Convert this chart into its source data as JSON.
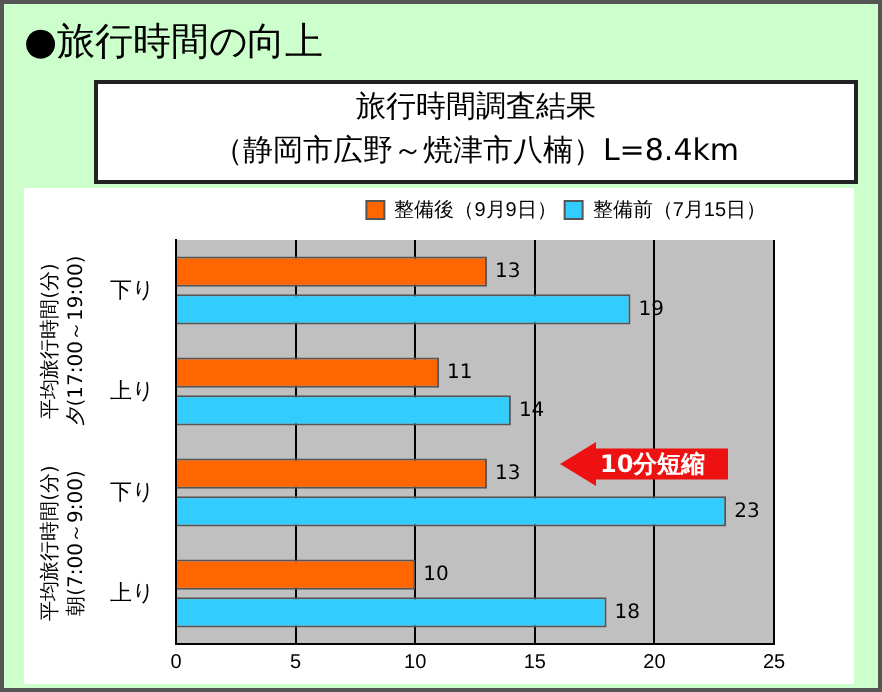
{
  "chart_data": {
    "type": "bar",
    "orientation": "horizontal",
    "title": "旅行時間調査結果",
    "subtitle": "（静岡市広野～焼津市八楠）L=8.4km",
    "categories": [
      "下り",
      "上り",
      "下り",
      "上り"
    ],
    "series": [
      {
        "name": "整備後（9月9日）",
        "color": "#ff6600",
        "values": [
          13,
          11,
          13,
          10
        ]
      },
      {
        "name": "整備前（7月15日）",
        "color": "#33ccff",
        "values": [
          19,
          14,
          23,
          18
        ]
      }
    ],
    "xlim": [
      0,
      25
    ],
    "xticks": [
      0,
      5,
      10,
      15,
      20,
      25
    ],
    "grid": "x",
    "legend": "top right",
    "data_labels": true,
    "annotations": [
      "●旅行時間の向上",
      "平均旅行時間(分)\n夕(17:00～19:00)",
      "平均旅行時間(分)\n朝(7:00～9:00)",
      "10分短縮"
    ]
  }
}
